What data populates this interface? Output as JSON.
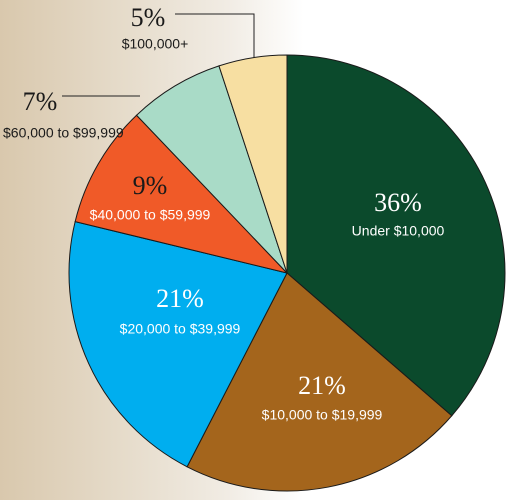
{
  "chart_data": {
    "type": "pie",
    "categories": [
      "Under $10,000",
      "$10,000 to $19,999",
      "$20,000 to $39,999",
      "$40,000 to $59,999",
      "$60,000 to $99,999",
      "$100,000+"
    ],
    "values": [
      36,
      21,
      21,
      9,
      7,
      5
    ],
    "value_labels": [
      "36%",
      "21%",
      "21%",
      "9%",
      "7%",
      "5%"
    ],
    "colors": [
      "#0b4a2c",
      "#a4651c",
      "#00aeef",
      "#f05a28",
      "#a9dbc7",
      "#f7dfa2"
    ]
  }
}
